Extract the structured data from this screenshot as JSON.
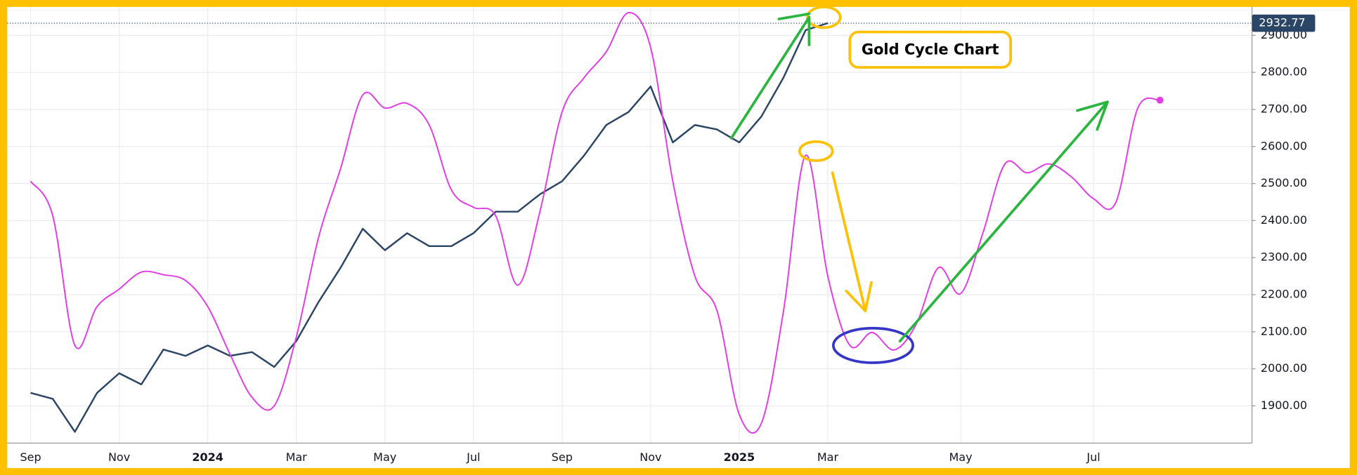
{
  "chart_data": {
    "type": "line",
    "annotation": "Gold Cycle Chart",
    "categories": [
      "Sep",
      null,
      null,
      null,
      "Nov",
      null,
      null,
      null,
      "2024",
      null,
      null,
      null,
      "Mar",
      null,
      null,
      null,
      "May",
      null,
      null,
      null,
      "Jul",
      null,
      null,
      null,
      "Sep",
      null,
      null,
      null,
      "Nov",
      null,
      null,
      null,
      "2025",
      null,
      null,
      null,
      "Mar",
      null,
      null,
      null,
      null,
      null,
      "May",
      null,
      null,
      null,
      null,
      null,
      "Jul",
      null,
      null,
      null
    ],
    "series": [
      {
        "color": "#2b4566",
        "smooth": false,
        "values": [
          1935,
          1919,
          1830,
          1935,
          1988,
          1958,
          2052,
          2035,
          2063,
          2035,
          2045,
          2005,
          2075,
          2180,
          2273,
          2378,
          2320,
          2366,
          2331,
          2331,
          2366,
          2424,
          2424,
          2471,
          2506,
          2576,
          2658,
          2693,
          2762,
          2611,
          2658,
          2646,
          2611,
          2681,
          2786,
          2914,
          2932.77,
          null,
          null,
          null,
          null,
          null,
          null,
          null,
          null,
          null,
          null,
          null,
          null,
          null,
          null,
          null
        ]
      },
      {
        "color": "#e23ce6",
        "smooth": true,
        "values": [
          2506,
          2413,
          2063,
          2168,
          2215,
          2261,
          2254,
          2238,
          2168,
          2040,
          1923,
          1900,
          2086,
          2354,
          2541,
          2739,
          2704,
          2716,
          2658,
          2483,
          2436,
          2413,
          2226,
          2424,
          2693,
          2786,
          2856,
          2961,
          2867,
          2506,
          2250,
          2156,
          1877,
          1853,
          2156,
          2576,
          2250,
          2063,
          2098,
          2051,
          2121,
          2273,
          2203,
          2366,
          2553,
          2529,
          2553,
          2518,
          2459,
          2448,
          2704,
          2725
        ]
      }
    ],
    "ylim": [
      1802,
      2972
    ],
    "yticks": [
      {
        "value": 1900,
        "label": "1900.00"
      },
      {
        "value": 2000,
        "label": "2000.00"
      },
      {
        "value": 2100,
        "label": "2100.00"
      },
      {
        "value": 2200,
        "label": "2200.00"
      },
      {
        "value": 2300,
        "label": "2300.00"
      },
      {
        "value": 2400,
        "label": "2400.00"
      },
      {
        "value": 2500,
        "label": "2500.00"
      },
      {
        "value": 2600,
        "label": "2600.00"
      },
      {
        "value": 2700,
        "label": "2700.00"
      },
      {
        "value": 2800,
        "label": "2800.00"
      },
      {
        "value": 2900,
        "label": "2900.00"
      }
    ],
    "grid": true
  }
}
